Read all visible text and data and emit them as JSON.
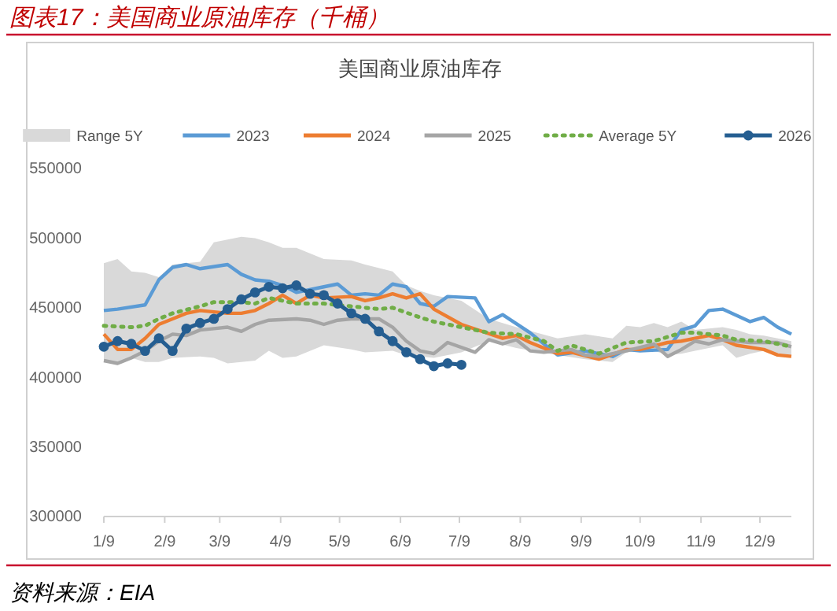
{
  "chart_data": {
    "type": "line",
    "title": "美国商业原油库存",
    "annotations": [
      "图表17：美国商业原油库存（千桶）",
      "资料来源：EIA"
    ],
    "xlim": [
      "--01-09",
      "--12-25"
    ],
    "xticks": [
      {
        "value": "--01-09",
        "label": "1/9"
      },
      {
        "value": "--02-09",
        "label": "2/9"
      },
      {
        "value": "--03-09",
        "label": "3/9"
      },
      {
        "value": "--04-09",
        "label": "4/9"
      },
      {
        "value": "--05-09",
        "label": "5/9"
      },
      {
        "value": "--06-09",
        "label": "6/9"
      },
      {
        "value": "--07-09",
        "label": "7/9"
      },
      {
        "value": "--08-09",
        "label": "8/9"
      },
      {
        "value": "--09-09",
        "label": "9/9"
      },
      {
        "value": "--10-09",
        "label": "10/9"
      },
      {
        "value": "--11-09",
        "label": "11/9"
      },
      {
        "value": "--12-09",
        "label": "12/9"
      }
    ],
    "ylim": [
      300000,
      550000
    ],
    "yticks": [
      300000,
      350000,
      400000,
      450000,
      500000,
      550000
    ],
    "grid": false,
    "legend": "top",
    "series": [
      {
        "name": "Range 5Y",
        "type": "area",
        "color": "#d9d9d9",
        "x": [
          "--01-09",
          "--01-16",
          "--01-23",
          "--01-30",
          "--02-06",
          "--02-13",
          "--02-27",
          "--03-06",
          "--03-13",
          "--03-20",
          "--03-27",
          "--04-03",
          "--04-10",
          "--04-17",
          "--05-01",
          "--05-15",
          "--05-22",
          "--06-05",
          "--06-12",
          "--06-19",
          "--06-26",
          "--07-10",
          "--07-24",
          "--08-07",
          "--08-28",
          "--09-11",
          "--09-25",
          "--10-02",
          "--10-09",
          "--10-16",
          "--10-23",
          "--10-30",
          "--11-06",
          "--11-20",
          "--11-27",
          "--12-04",
          "--12-11",
          "--12-18",
          "--12-25"
        ],
        "values": [
          null,
          null,
          null,
          null,
          null,
          null,
          null,
          null,
          null,
          null,
          null,
          null,
          null,
          null,
          null,
          null,
          null,
          null,
          null,
          null,
          null,
          null,
          null,
          null,
          null,
          null,
          null,
          null,
          null,
          null,
          null,
          null,
          null,
          null,
          null,
          null,
          null,
          null,
          null
        ],
        "upper": [
          482000,
          485000,
          476000,
          475000,
          472000,
          481000,
          483000,
          497000,
          499000,
          501000,
          500000,
          497000,
          493000,
          493000,
          485000,
          484000,
          481000,
          476000,
          466000,
          462000,
          459000,
          455000,
          442000,
          436000,
          428000,
          431000,
          428000,
          437000,
          436000,
          439000,
          436000,
          440000,
          434000,
          436000,
          434000,
          431000,
          430000,
          428000,
          426000
        ],
        "lower": [
          411000,
          409000,
          414000,
          411000,
          411000,
          414000,
          415000,
          414000,
          410000,
          411000,
          412000,
          419000,
          414000,
          415000,
          423000,
          420000,
          418000,
          419000,
          416000,
          415000,
          414000,
          418000,
          426000,
          421000,
          416000,
          413000,
          411000,
          418000,
          419000,
          419000,
          416000,
          417000,
          419000,
          423000,
          414000,
          417000,
          419000,
          416000,
          415000
        ]
      },
      {
        "name": "2023",
        "color": "#5b9bd5",
        "x": [
          "--01-09",
          "--01-16",
          "--01-30",
          "--02-06",
          "--02-13",
          "--02-20",
          "--02-27",
          "--03-13",
          "--03-20",
          "--03-27",
          "--04-03",
          "--04-10",
          "--04-17",
          "--05-01",
          "--05-08",
          "--05-15",
          "--05-22",
          "--05-29",
          "--06-05",
          "--06-12",
          "--06-19",
          "--06-26",
          "--07-03",
          "--07-17",
          "--07-24",
          "--07-31",
          "--08-14",
          "--08-28",
          "--09-11",
          "--09-25",
          "--10-02",
          "--10-09",
          "--10-23",
          "--10-30",
          "--11-06",
          "--11-13",
          "--11-20",
          "--12-04",
          "--12-11",
          "--12-18",
          "--12-25"
        ],
        "values": [
          448000,
          449000,
          452000,
          470000,
          479000,
          481000,
          478000,
          481000,
          474000,
          470000,
          469000,
          466000,
          461000,
          465000,
          467000,
          459000,
          460000,
          459000,
          467000,
          465000,
          453000,
          451000,
          458000,
          457000,
          440000,
          445000,
          432000,
          416000,
          419000,
          415000,
          420000,
          419000,
          420000,
          434000,
          437000,
          448000,
          449000,
          440000,
          443000,
          436000,
          431000
        ]
      },
      {
        "name": "2024",
        "color": "#ed7d31",
        "x": [
          "--01-09",
          "--01-16",
          "--01-23",
          "--01-30",
          "--02-06",
          "--02-13",
          "--02-20",
          "--02-27",
          "--03-13",
          "--03-20",
          "--03-27",
          "--04-03",
          "--04-10",
          "--04-17",
          "--04-24",
          "--05-01",
          "--05-15",
          "--05-22",
          "--05-29",
          "--06-05",
          "--06-12",
          "--06-19",
          "--06-26",
          "--07-10",
          "--07-31",
          "--08-07",
          "--08-14",
          "--08-28",
          "--09-04",
          "--09-18",
          "--10-02",
          "--10-09",
          "--10-23",
          "--10-30",
          "--11-13",
          "--11-20",
          "--11-27",
          "--12-11",
          "--12-18",
          "--12-25"
        ],
        "values": [
          431000,
          420000,
          420000,
          428000,
          438000,
          442000,
          446000,
          448000,
          446000,
          446000,
          448000,
          453000,
          459000,
          453000,
          459000,
          457000,
          458000,
          455000,
          457000,
          460000,
          457000,
          460000,
          449000,
          438000,
          428000,
          430000,
          425000,
          417000,
          418000,
          413000,
          420000,
          420000,
          425000,
          426000,
          430000,
          427000,
          423000,
          420000,
          416000,
          415000
        ]
      },
      {
        "name": "2025",
        "color": "#a5a5a5",
        "x": [
          "--01-09",
          "--01-16",
          "--01-23",
          "--01-30",
          "--02-06",
          "--02-13",
          "--02-20",
          "--02-27",
          "--03-06",
          "--03-13",
          "--03-20",
          "--03-27",
          "--04-03",
          "--04-17",
          "--04-24",
          "--05-01",
          "--05-08",
          "--05-15",
          "--05-29",
          "--06-05",
          "--06-12",
          "--06-19",
          "--06-26",
          "--07-03",
          "--07-17",
          "--07-24",
          "--07-31",
          "--08-07",
          "--08-14",
          "--08-21",
          "--09-04",
          "--09-11",
          "--09-18",
          "--10-02",
          "--10-16",
          "--10-23",
          "--10-30",
          "--11-06",
          "--11-13",
          "--11-20",
          "--12-04",
          "--12-11",
          "--12-18",
          "--12-25"
        ],
        "values": [
          412000,
          410000,
          414000,
          419000,
          426000,
          431000,
          430000,
          434000,
          435000,
          436000,
          433000,
          438000,
          441000,
          442000,
          441000,
          438000,
          441000,
          442000,
          442000,
          436000,
          426000,
          419000,
          417000,
          425000,
          418000,
          427000,
          424000,
          427000,
          419000,
          418000,
          420000,
          416000,
          415000,
          419000,
          424000,
          415000,
          420000,
          426000,
          424000,
          427000,
          425000,
          425000,
          425000,
          422000
        ]
      },
      {
        "name": "Average 5Y",
        "color": "#70ad47",
        "line_style": "dotted",
        "x": [
          "--01-09",
          "--01-23",
          "--01-30",
          "--02-06",
          "--02-13",
          "--02-27",
          "--03-06",
          "--03-20",
          "--03-27",
          "--04-03",
          "--04-17",
          "--05-01",
          "--05-15",
          "--05-29",
          "--06-05",
          "--06-19",
          "--06-26",
          "--07-10",
          "--07-24",
          "--08-07",
          "--08-21",
          "--08-28",
          "--09-04",
          "--09-18",
          "--10-02",
          "--10-16",
          "--10-30",
          "--11-06",
          "--11-20",
          "--11-27",
          "--12-11",
          "--12-25"
        ],
        "values": [
          437000,
          436000,
          437000,
          442000,
          446000,
          451000,
          454000,
          454000,
          453000,
          457000,
          453000,
          453000,
          451000,
          449000,
          450000,
          443000,
          440000,
          436000,
          432000,
          431000,
          426000,
          419000,
          423000,
          417000,
          425000,
          426000,
          432000,
          432000,
          430000,
          427000,
          426000,
          422000
        ]
      },
      {
        "name": "2026",
        "color": "#255e91",
        "marker": "circle",
        "x": [
          "--01-09",
          "--01-16",
          "--01-23",
          "--01-30",
          "--02-06",
          "--02-13",
          "--02-20",
          "--02-27",
          "--03-06",
          "--03-13",
          "--03-20",
          "--03-27",
          "--04-03",
          "--04-10",
          "--04-17",
          "--04-24",
          "--05-01",
          "--05-08",
          "--05-15",
          "--05-22",
          "--05-29",
          "--06-05",
          "--06-12",
          "--06-19",
          "--06-26",
          "--07-03",
          "--07-10"
        ],
        "values": [
          422000,
          426000,
          424000,
          419000,
          428000,
          419000,
          435000,
          439000,
          442000,
          449000,
          456000,
          461000,
          465000,
          464000,
          466000,
          460000,
          459000,
          453000,
          446000,
          442000,
          433000,
          426000,
          418000,
          413000,
          408000,
          410000,
          409000
        ]
      }
    ]
  }
}
